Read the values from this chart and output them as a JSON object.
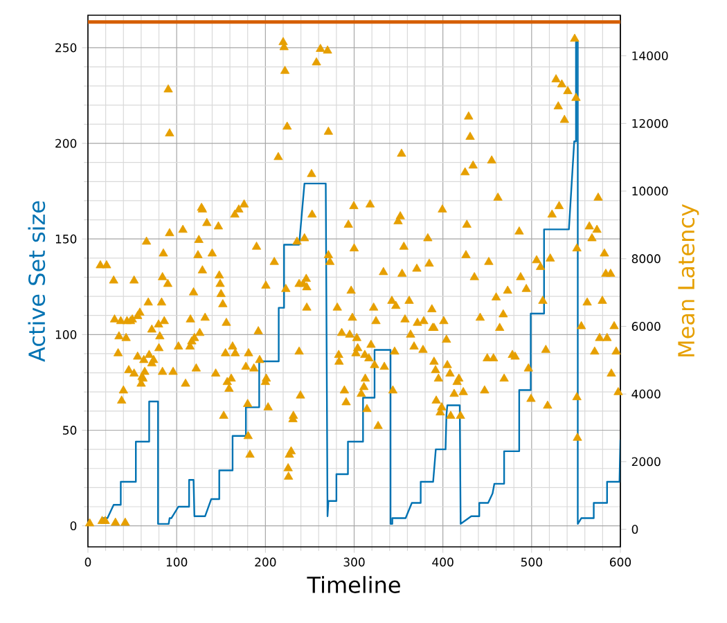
{
  "chart_data": {
    "type": "line",
    "xlabel": "Timeline",
    "ylabel": "Active Set size",
    "y2label": "Mean Latency",
    "xlim": [
      0,
      600
    ],
    "xticks": [
      0,
      100,
      200,
      300,
      400,
      500,
      600
    ],
    "ylim": [
      -11,
      267
    ],
    "yticks": [
      0,
      50,
      100,
      150,
      200,
      250
    ],
    "y2lim": [
      -520,
      15200
    ],
    "y2ticks": [
      0,
      2000,
      4000,
      6000,
      8000,
      10000,
      12000,
      14000
    ],
    "grid": true,
    "ref_lines": [
      {
        "axis": "y2",
        "value": 15000,
        "color": "#d55e00"
      }
    ],
    "series": [
      {
        "color": "#0072b2",
        "line_style": "solid",
        "x": [
          16,
          22,
          29,
          37,
          37,
          54,
          54,
          69,
          69,
          79,
          79,
          91,
          92,
          94,
          102,
          114,
          114,
          119,
          120,
          132,
          139,
          148,
          148,
          163,
          163,
          178,
          178,
          193,
          193,
          215,
          215,
          221,
          221,
          238,
          244,
          268,
          270,
          271,
          280,
          280,
          293,
          293,
          310,
          310,
          323,
          323,
          341,
          341,
          343,
          343,
          358,
          365,
          375,
          375,
          389,
          392,
          403,
          404,
          405,
          419,
          420,
          432,
          441,
          441,
          451,
          456,
          458,
          469,
          469,
          486,
          486,
          499,
          499,
          514,
          514,
          542,
          548,
          550,
          550,
          552,
          552,
          556,
          570,
          570,
          585,
          585,
          599,
          600
        ],
        "values": [
          4,
          4,
          11,
          11,
          23,
          23,
          44,
          44,
          65,
          65,
          1,
          1,
          4,
          4,
          10,
          10,
          24,
          24,
          5,
          5,
          14,
          14,
          29,
          29,
          47,
          47,
          62,
          62,
          86,
          86,
          114,
          114,
          147,
          147,
          179,
          179,
          5,
          13,
          13,
          27,
          27,
          44,
          44,
          67,
          67,
          92,
          92,
          1,
          1,
          4,
          4,
          12,
          12,
          23,
          23,
          40,
          40,
          58,
          63,
          63,
          1,
          5,
          5,
          12,
          12,
          17,
          22,
          22,
          39,
          39,
          71,
          71,
          111,
          111,
          155,
          155,
          201,
          201,
          253,
          253,
          1,
          4,
          4,
          12,
          12,
          23,
          23,
          45
        ]
      },
      {
        "type": "scatter",
        "axis": "y2",
        "marker": "triangle",
        "color": "#e69f00",
        "x": [
          2,
          16,
          19.5,
          31,
          42,
          14,
          21,
          29,
          30,
          34,
          35,
          38,
          37,
          40,
          44,
          43,
          46,
          48,
          50,
          52,
          52,
          56,
          56,
          58.5,
          60,
          61,
          62,
          63,
          64,
          66,
          68,
          69,
          72,
          72,
          74,
          80,
          81,
          83,
          84,
          84,
          85,
          86,
          79.6,
          90,
          92,
          90.5,
          92,
          96,
          102,
          107,
          110,
          115,
          117,
          115.5,
          119,
          120,
          122,
          124,
          125,
          126,
          128,
          129,
          129,
          132,
          134,
          140,
          144,
          147,
          148,
          149,
          150,
          152,
          153,
          155,
          156,
          157,
          159,
          161.5,
          163,
          165.5,
          166,
          170,
          176,
          178,
          180,
          181,
          180.5,
          182.6,
          187,
          190,
          192,
          193.5,
          200,
          201,
          203,
          200.5,
          210,
          214.5,
          220,
          221,
          222,
          224.5,
          223,
          225.6,
          226,
          227,
          229,
          231.5,
          231,
          235.6,
          238,
          238,
          239.5,
          242.6,
          244,
          246,
          246.6,
          246.6,
          252,
          252.6,
          257.5,
          262,
          270,
          271,
          271,
          272.7,
          281,
          282.6,
          283,
          286,
          289,
          291,
          293.5,
          295,
          296.6,
          298,
          299.6,
          300,
          302,
          303,
          304,
          308,
          311,
          312.5,
          312,
          314.4,
          316.6,
          318,
          319,
          322,
          323,
          324.6,
          327,
          333,
          334,
          342.5,
          343.6,
          345.6,
          347,
          349.5,
          352,
          353.4,
          354,
          356,
          357.3,
          362,
          363.6,
          367.5,
          370.6,
          371.3,
          378.4,
          377.6,
          383,
          384.6,
          387.6,
          388.5,
          390,
          390,
          391.7,
          392.5,
          395,
          397,
          398.6,
          399.4,
          401,
          404,
          405,
          408,
          408.8,
          412.7,
          416,
          418,
          419.8,
          423,
          425,
          426,
          427,
          429,
          430.7,
          434,
          435.5,
          442,
          447,
          450,
          451.7,
          455,
          457,
          460,
          462,
          464,
          468,
          469,
          473,
          478.3,
          481.4,
          486,
          487.6,
          494,
          496.4,
          499.3,
          505.6,
          510,
          512.6,
          516,
          518,
          521,
          523,
          527.5,
          530,
          531,
          534,
          537,
          540.7,
          548.5,
          550,
          551,
          551,
          551.6,
          556,
          562.6,
          565,
          568,
          571,
          573.6,
          575,
          576.6,
          579.7,
          582,
          583.6,
          585,
          589,
          589.8,
          593,
          595.3,
          597.6
        ],
        "values": [
          170,
          240,
          240,
          190,
          190,
          7800,
          7800,
          7350,
          6200,
          5200,
          5700,
          3800,
          6150,
          4100,
          6150,
          5650,
          4700,
          6150,
          6200,
          7350,
          4600,
          6300,
          5100,
          6400,
          4300,
          4500,
          4450,
          5000,
          4650,
          8500,
          6700,
          5150,
          5900,
          4900,
          5000,
          5350,
          5700,
          6700,
          7450,
          4650,
          8150,
          6150,
          6050,
          7250,
          8750,
          13000,
          11700,
          4650,
          5400,
          8850,
          4300,
          5400,
          5550,
          6200,
          7000,
          5650,
          4750,
          8100,
          8550,
          5800,
          9500,
          9450,
          7650,
          6250,
          9050,
          8150,
          4600,
          8950,
          7500,
          7250,
          6950,
          6650,
          3350,
          5200,
          6100,
          4350,
          4150,
          4450,
          5400,
          9300,
          5200,
          9450,
          9600,
          4800,
          3700,
          5200,
          2750,
          2200,
          4750,
          8350,
          5850,
          5000,
          4350,
          4450,
          3600,
          7200,
          7900,
          11000,
          14400,
          14250,
          13550,
          11900,
          7100,
          1800,
          1550,
          2200,
          2300,
          3350,
          3250,
          8500,
          7250,
          5250,
          3950,
          7250,
          8600,
          7400,
          7150,
          6550,
          10500,
          9300,
          13800,
          14200,
          14150,
          11750,
          8100,
          7900,
          6550,
          5150,
          4950,
          5800,
          4100,
          3750,
          9000,
          5750,
          7050,
          6250,
          9550,
          8300,
          5200,
          5650,
          5350,
          4000,
          4200,
          4450,
          5150,
          3550,
          5050,
          9600,
          5450,
          6550,
          4850,
          6150,
          3050,
          7600,
          4800,
          6750,
          4100,
          5250,
          6600,
          9100,
          9250,
          11100,
          7550,
          8350,
          6200,
          6750,
          5750,
          5400,
          7700,
          6100,
          6150,
          5300,
          8600,
          7850,
          6500,
          5950,
          5950,
          4950,
          4700,
          3800,
          4450,
          3450,
          3600,
          9450,
          6150,
          5600,
          4850,
          4600,
          3350,
          4000,
          4350,
          4450,
          3350,
          4050,
          10550,
          8100,
          9000,
          12200,
          11600,
          10750,
          7450,
          6250,
          4100,
          5050,
          7900,
          10900,
          5050,
          6850,
          9800,
          5950,
          6350,
          4450,
          7050,
          5150,
          5100,
          8800,
          7450,
          7100,
          4750,
          3850,
          7950,
          7750,
          6750,
          5300,
          3650,
          8000,
          9300,
          13300,
          12500,
          9550,
          13150,
          12100,
          12950,
          14500,
          12750,
          8300,
          3900,
          2700,
          6000,
          6700,
          8950,
          8600,
          5250,
          8850,
          9800,
          5650,
          6750,
          8150,
          7550,
          5650,
          7550,
          4600,
          6000,
          5250,
          4050
        ]
      }
    ]
  }
}
